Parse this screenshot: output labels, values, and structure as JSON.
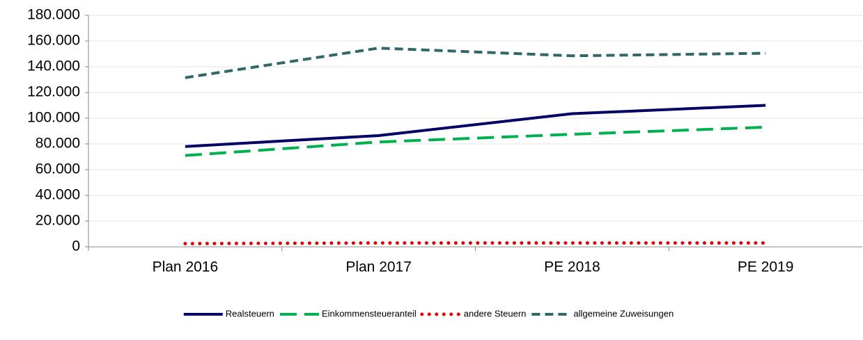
{
  "chart_data": {
    "type": "line",
    "categories": [
      "Plan 2016",
      "Plan 2017",
      "PE 2018",
      "PE 2019"
    ],
    "series": [
      {
        "name": "Realsteuern",
        "color": "#000066",
        "dash": "solid",
        "values": [
          78000,
          86500,
          103500,
          110000
        ]
      },
      {
        "name": "Einkommensteueranteil",
        "color": "#00b050",
        "dash": "long-dash",
        "values": [
          71000,
          81500,
          87500,
          93000
        ]
      },
      {
        "name": "andere Steuern",
        "color": "#e00000",
        "dash": "dot",
        "values": [
          2500,
          3000,
          3000,
          3000
        ]
      },
      {
        "name": "allgemeine Zuweisungen",
        "color": "#336666",
        "dash": "dash",
        "values": [
          131500,
          154500,
          148500,
          150500
        ]
      }
    ],
    "ylim": [
      0,
      180000
    ],
    "yticks": [
      0,
      {
        "value": 20000,
        "label": "20.000"
      },
      {
        "value": 40000,
        "label": "40.000"
      },
      {
        "value": 60000,
        "label": "60.000"
      },
      {
        "value": 80000,
        "label": "80.000"
      },
      {
        "value": 100000,
        "label": "100.000"
      },
      {
        "value": 120000,
        "label": "120.000"
      },
      {
        "value": 140000,
        "label": "140.000"
      },
      {
        "value": 160000,
        "label": "160.000"
      },
      {
        "value": 180000,
        "label": "180.000"
      }
    ],
    "grid": true,
    "legend": "bottom"
  }
}
